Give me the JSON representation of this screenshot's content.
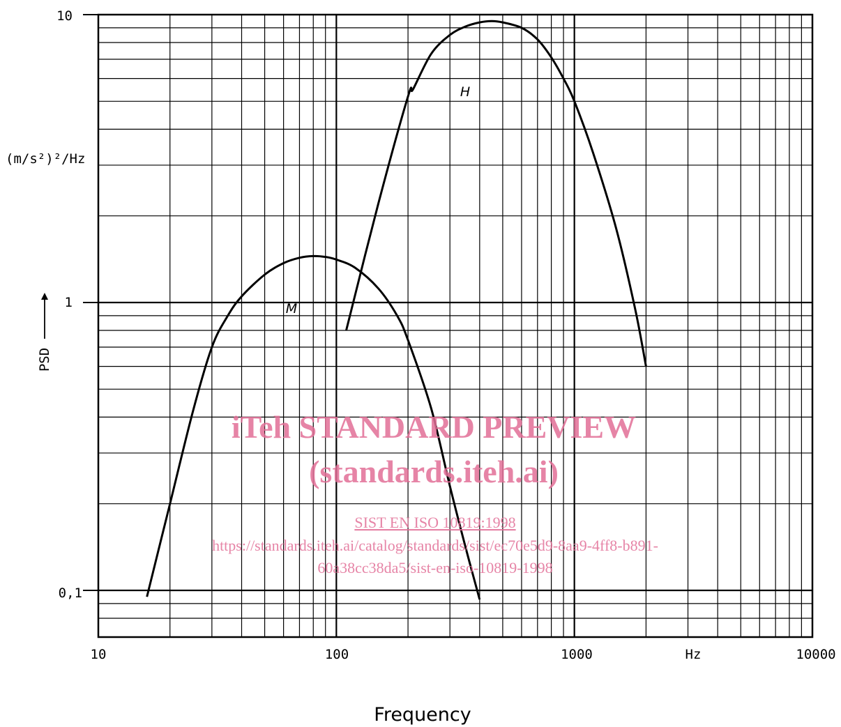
{
  "chart_data": {
    "type": "line",
    "x_scale": "log",
    "y_scale": "log",
    "xlim": [
      10,
      10000
    ],
    "ylim": [
      0.075,
      10
    ],
    "x_ticks": [
      "10",
      "100",
      "1000",
      "10000"
    ],
    "x_unit": "Hz",
    "y_ticks": [
      "10",
      "1",
      "0,1"
    ],
    "y_unit": "(m/s²)²/Hz",
    "xlabel": "Frequency",
    "ylabel": "PSD",
    "grid": true,
    "series": [
      {
        "name": "M",
        "x": [
          16,
          20,
          25,
          30,
          35,
          40,
          50,
          60,
          70,
          80,
          90,
          100,
          120,
          150,
          180,
          200,
          250,
          300,
          350,
          400
        ],
        "y": [
          0.095,
          0.2,
          0.42,
          0.7,
          0.9,
          1.05,
          1.25,
          1.37,
          1.43,
          1.45,
          1.44,
          1.41,
          1.32,
          1.12,
          0.9,
          0.74,
          0.43,
          0.23,
          0.14,
          0.093
        ]
      },
      {
        "name": "H",
        "x": [
          110,
          150,
          200,
          210,
          250,
          300,
          350,
          400,
          450,
          500,
          600,
          700,
          800,
          900,
          1000,
          1200,
          1500,
          1800,
          2000
        ],
        "y": [
          0.8,
          2.2,
          5.2,
          5.5,
          7.3,
          8.5,
          9.1,
          9.4,
          9.5,
          9.4,
          9.0,
          8.2,
          7.1,
          6.0,
          5.0,
          3.3,
          1.8,
          0.95,
          0.6
        ]
      }
    ]
  },
  "watermark": {
    "title": "iTeh STANDARD PREVIEW",
    "subtitle": "(standards.iteh.ai)",
    "doc_id": "SIST EN ISO 10819:1998",
    "url_line1": "https://standards.iteh.ai/catalog/standards/sist/ec70e5d9-8aa9-4ff8-b891-",
    "url_line2": "60a38cc38da5/sist-en-iso-10819-1998"
  }
}
